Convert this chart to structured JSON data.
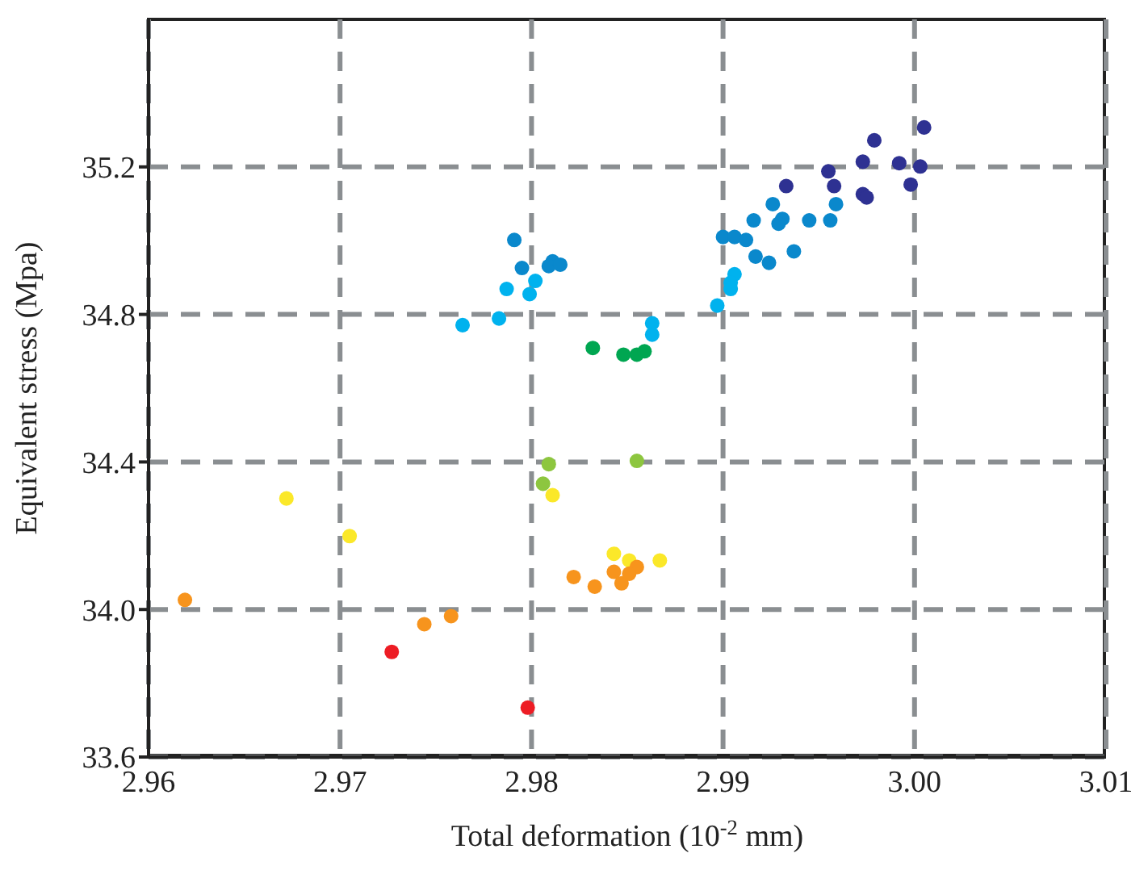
{
  "chart_data": {
    "type": "scatter",
    "xlabel": "Total deformation (10$^{-2}$ mm)",
    "ylabel": "Equivalent stress (Mpa)",
    "xlim": [
      2.96,
      3.01
    ],
    "xticks": [
      2.96,
      2.97,
      2.98,
      2.99,
      {
        "value": 3.0,
        "label": "3.00"
      },
      3.01
    ],
    "ylim": [
      33.6,
      35.6
    ],
    "yticks": [
      33.6,
      35.2,
      34.8,
      34.4,
      {
        "value": 34.0,
        "label": "34.0"
      }
    ],
    "grid": true,
    "marker": "circle",
    "legend": false,
    "series": [
      {
        "color": "#2e3192",
        "x": [
          3.0005,
          2.9979,
          2.9973,
          2.9992,
          3.0003,
          2.9955,
          2.9933,
          2.9958,
          2.9973,
          2.9975,
          2.9998
        ],
        "values": [
          35.307,
          35.272,
          35.214,
          35.21,
          35.201,
          35.188,
          35.148,
          35.148,
          35.126,
          35.117,
          35.152
        ]
      },
      {
        "color": "#0a88cc",
        "x": [
          2.9926,
          2.9959,
          2.9916,
          2.9931,
          2.9929,
          2.9945,
          2.9956,
          2.99,
          2.9906,
          2.9912,
          2.9937,
          2.9917,
          2.9924,
          2.9791,
          2.9795,
          2.9811,
          2.9809,
          2.9815
        ],
        "values": [
          35.099,
          35.099,
          35.055,
          35.059,
          35.046,
          35.055,
          35.055,
          35.01,
          35.01,
          35.002,
          34.971,
          34.957,
          34.94,
          35.002,
          34.926,
          34.944,
          34.931,
          34.935
        ]
      },
      {
        "color": "#00b2ee",
        "x": [
          2.9906,
          2.9904,
          2.9904,
          2.9897,
          2.9802,
          2.9799,
          2.9787,
          2.9783,
          2.9764,
          2.9863,
          2.9863
        ],
        "values": [
          34.909,
          34.886,
          34.869,
          34.824,
          34.891,
          34.855,
          34.869,
          34.789,
          34.771,
          34.776,
          34.745
        ]
      },
      {
        "color": "#00a651",
        "x": [
          2.9832,
          2.9848,
          2.9855,
          2.9859
        ],
        "values": [
          34.709,
          34.691,
          34.691,
          34.7
        ]
      },
      {
        "color": "#8dc63f",
        "x": [
          2.9809,
          2.9855,
          2.9806
        ],
        "values": [
          34.394,
          34.403,
          34.341
        ]
      },
      {
        "color": "#fbe829",
        "x": [
          2.9811,
          2.9843,
          2.9851,
          2.9867,
          2.9672,
          2.9705
        ],
        "values": [
          34.31,
          34.151,
          34.133,
          34.133,
          34.301,
          34.199
        ]
      },
      {
        "color": "#f7941d",
        "x": [
          2.9822,
          2.9833,
          2.9843,
          2.9847,
          2.9855,
          2.9851,
          2.9619,
          2.9744,
          2.9758
        ],
        "values": [
          34.088,
          34.062,
          34.102,
          34.071,
          34.115,
          34.097,
          34.026,
          33.96,
          33.982
        ]
      },
      {
        "color": "#ed1c24",
        "x": [
          2.9798,
          2.9727
        ],
        "values": [
          33.734,
          33.885
        ]
      }
    ]
  }
}
